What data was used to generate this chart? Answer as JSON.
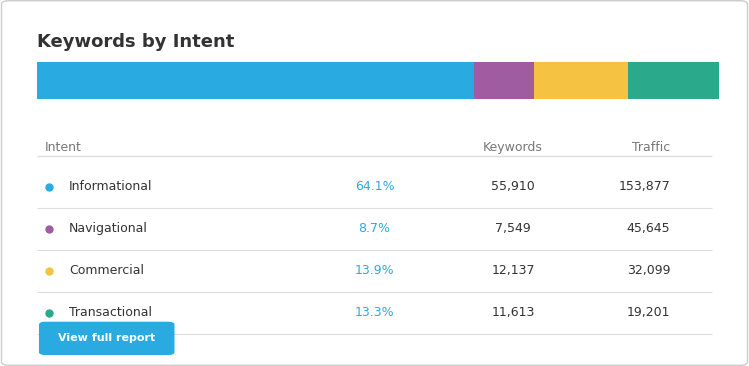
{
  "title": "Keywords by Intent",
  "bar_segments": [
    {
      "label": "Informational",
      "pct": 64.1,
      "color": "#29ABE2"
    },
    {
      "label": "Navigational",
      "pct": 8.7,
      "color": "#A05CA0"
    },
    {
      "label": "Commercial",
      "pct": 13.9,
      "color": "#F5C242"
    },
    {
      "label": "Transactional",
      "pct": 13.3,
      "color": "#2BA98B"
    }
  ],
  "dot_colors": [
    "#29ABE2",
    "#A05CA0",
    "#F5C242",
    "#2BA98B"
  ],
  "intents": [
    "Informational",
    "Navigational",
    "Commercial",
    "Transactional"
  ],
  "percentages": [
    "64.1%",
    "8.7%",
    "13.9%",
    "13.3%"
  ],
  "keywords": [
    "55,910",
    "7,549",
    "12,137",
    "11,613"
  ],
  "traffic": [
    "153,877",
    "45,645",
    "32,099",
    "19,201"
  ],
  "header_intent": "Intent",
  "header_keywords": "Keywords",
  "header_traffic": "Traffic",
  "button_text": "View full report",
  "button_color": "#29ABE2",
  "background_color": "#ffffff",
  "border_color": "#cccccc",
  "pct_color": "#29ABE2",
  "text_color": "#333333",
  "header_color": "#777777",
  "line_color": "#dddddd",
  "title_fontsize": 13,
  "header_fontsize": 9,
  "row_fontsize": 9
}
